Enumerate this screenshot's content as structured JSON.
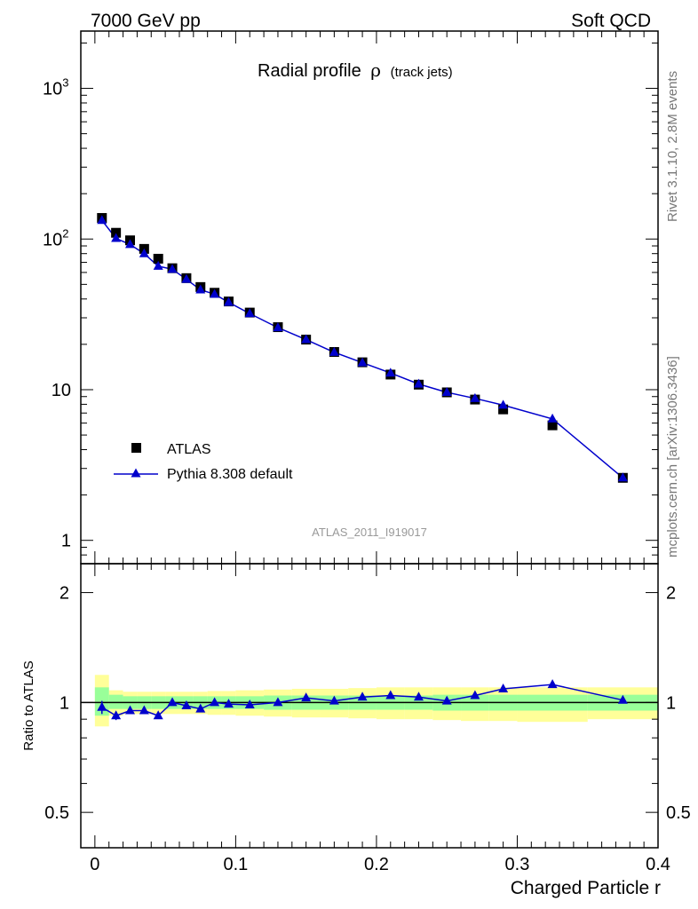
{
  "header": {
    "left": "7000 GeV pp",
    "right": "Soft QCD"
  },
  "side_texts": {
    "rivet": "Rivet 3.1.10,  2.8M events",
    "source": "mcplots.cern.ch [arXiv:1306.3436]"
  },
  "chart_data": [
    {
      "type": "scatter",
      "title": "Radial profile",
      "title_symbol": "ρ",
      "title_suffix": "(track jets)",
      "analysis_label": "ATLAS_2011_I919017",
      "xlabel": "Charged Particle r",
      "ylabel": "",
      "xlim": [
        -0.01,
        0.4
      ],
      "ylim": [
        0.7,
        2400
      ],
      "yscale": "log",
      "yticks": [
        {
          "value": 1,
          "label": "1"
        },
        {
          "value": 10,
          "label": "10"
        },
        {
          "value": 100,
          "label": "10",
          "exp": "2"
        },
        {
          "value": 1000,
          "label": "10",
          "exp": "3"
        }
      ],
      "legend_position": "middle-left",
      "x": [
        0.005,
        0.015,
        0.025,
        0.035,
        0.045,
        0.055,
        0.065,
        0.075,
        0.085,
        0.095,
        0.11,
        0.13,
        0.15,
        0.17,
        0.19,
        0.21,
        0.23,
        0.25,
        0.27,
        0.29,
        0.325,
        0.375
      ],
      "series": [
        {
          "name": "ATLAS",
          "marker": "square",
          "color": "#000000",
          "values": [
            138,
            110,
            98,
            86,
            74,
            64,
            55,
            48,
            44,
            38.5,
            32.5,
            26,
            21.5,
            17.8,
            15.2,
            12.6,
            10.8,
            9.6,
            8.6,
            7.4,
            5.8,
            2.6
          ]
        },
        {
          "name": "Pythia 8.308 default",
          "marker": "triangle",
          "color": "#0000cc",
          "values": [
            133,
            101,
            92,
            80,
            66,
            63,
            54,
            46,
            43,
            38,
            32,
            25.8,
            21.5,
            17.7,
            15.1,
            12.9,
            10.9,
            9.6,
            8.75,
            7.9,
            6.4,
            2.6
          ]
        }
      ]
    },
    {
      "type": "line",
      "ylabel": "Ratio to ATLAS",
      "xlabel": "Charged Particle r",
      "xlim": [
        -0.01,
        0.4
      ],
      "ylim": [
        0.4,
        2.4
      ],
      "yscale": "log",
      "yticks": [
        {
          "value": 0.5,
          "label": "0.5"
        },
        {
          "value": 1,
          "label": "1"
        },
        {
          "value": 2,
          "label": "2"
        }
      ],
      "xticks": [
        {
          "value": 0,
          "label": "0"
        },
        {
          "value": 0.1,
          "label": "0.1"
        },
        {
          "value": 0.2,
          "label": "0.2"
        },
        {
          "value": 0.3,
          "label": "0.3"
        },
        {
          "value": 0.4,
          "label": "0.4"
        }
      ],
      "reference_line": 1,
      "band_colors": {
        "inner": "#99ff99",
        "outer": "#ffff99"
      },
      "bands": [
        {
          "x0": 0.0,
          "x1": 0.01,
          "inner": [
            0.92,
            1.1
          ],
          "outer": [
            0.86,
            1.19
          ]
        },
        {
          "x0": 0.01,
          "x1": 0.02,
          "inner": [
            0.96,
            1.05
          ],
          "outer": [
            0.92,
            1.08
          ]
        },
        {
          "x0": 0.02,
          "x1": 0.03,
          "inner": [
            0.96,
            1.04
          ],
          "outer": [
            0.93,
            1.07
          ]
        },
        {
          "x0": 0.03,
          "x1": 0.04,
          "inner": [
            0.96,
            1.04
          ],
          "outer": [
            0.93,
            1.07
          ]
        },
        {
          "x0": 0.04,
          "x1": 0.05,
          "inner": [
            0.96,
            1.04
          ],
          "outer": [
            0.93,
            1.07
          ]
        },
        {
          "x0": 0.05,
          "x1": 0.06,
          "inner": [
            0.96,
            1.04
          ],
          "outer": [
            0.93,
            1.07
          ]
        },
        {
          "x0": 0.06,
          "x1": 0.07,
          "inner": [
            0.96,
            1.04
          ],
          "outer": [
            0.93,
            1.07
          ]
        },
        {
          "x0": 0.07,
          "x1": 0.08,
          "inner": [
            0.96,
            1.04
          ],
          "outer": [
            0.93,
            1.07
          ]
        },
        {
          "x0": 0.08,
          "x1": 0.09,
          "inner": [
            0.96,
            1.04
          ],
          "outer": [
            0.925,
            1.075
          ]
        },
        {
          "x0": 0.09,
          "x1": 0.1,
          "inner": [
            0.96,
            1.04
          ],
          "outer": [
            0.925,
            1.075
          ]
        },
        {
          "x0": 0.1,
          "x1": 0.12,
          "inner": [
            0.96,
            1.04
          ],
          "outer": [
            0.92,
            1.08
          ]
        },
        {
          "x0": 0.12,
          "x1": 0.14,
          "inner": [
            0.955,
            1.045
          ],
          "outer": [
            0.915,
            1.085
          ]
        },
        {
          "x0": 0.14,
          "x1": 0.16,
          "inner": [
            0.955,
            1.045
          ],
          "outer": [
            0.91,
            1.09
          ]
        },
        {
          "x0": 0.16,
          "x1": 0.18,
          "inner": [
            0.955,
            1.045
          ],
          "outer": [
            0.91,
            1.09
          ]
        },
        {
          "x0": 0.18,
          "x1": 0.2,
          "inner": [
            0.955,
            1.045
          ],
          "outer": [
            0.905,
            1.095
          ]
        },
        {
          "x0": 0.2,
          "x1": 0.22,
          "inner": [
            0.955,
            1.045
          ],
          "outer": [
            0.9,
            1.1
          ]
        },
        {
          "x0": 0.22,
          "x1": 0.24,
          "inner": [
            0.955,
            1.045
          ],
          "outer": [
            0.9,
            1.1
          ]
        },
        {
          "x0": 0.24,
          "x1": 0.26,
          "inner": [
            0.95,
            1.05
          ],
          "outer": [
            0.895,
            1.1
          ]
        },
        {
          "x0": 0.26,
          "x1": 0.28,
          "inner": [
            0.95,
            1.05
          ],
          "outer": [
            0.89,
            1.1
          ]
        },
        {
          "x0": 0.28,
          "x1": 0.3,
          "inner": [
            0.95,
            1.05
          ],
          "outer": [
            0.89,
            1.1
          ]
        },
        {
          "x0": 0.3,
          "x1": 0.35,
          "inner": [
            0.95,
            1.05
          ],
          "outer": [
            0.885,
            1.1
          ]
        },
        {
          "x0": 0.35,
          "x1": 0.4,
          "inner": [
            0.95,
            1.05
          ],
          "outer": [
            0.9,
            1.1
          ]
        }
      ],
      "x": [
        0.005,
        0.015,
        0.025,
        0.035,
        0.045,
        0.055,
        0.065,
        0.075,
        0.085,
        0.095,
        0.11,
        0.13,
        0.15,
        0.17,
        0.19,
        0.21,
        0.23,
        0.25,
        0.27,
        0.29,
        0.325,
        0.375
      ],
      "series": [
        {
          "name": "Pythia 8.308 default",
          "color": "#0000cc",
          "values": [
            0.97,
            0.92,
            0.95,
            0.95,
            0.92,
            1.0,
            0.98,
            0.96,
            1.0,
            0.99,
            0.985,
            1.0,
            1.03,
            1.01,
            1.035,
            1.045,
            1.035,
            1.01,
            1.045,
            1.09,
            1.12,
            1.015
          ],
          "err": [
            0.04,
            0.025,
            0.02,
            0.015,
            0.015,
            0.012,
            0.01,
            0.01,
            0.01,
            0.01,
            0.005,
            0.005,
            0.005,
            0.005,
            0.005,
            0.005,
            0.005,
            0.005,
            0.005,
            0.005,
            0.005,
            0.005
          ]
        }
      ]
    }
  ]
}
